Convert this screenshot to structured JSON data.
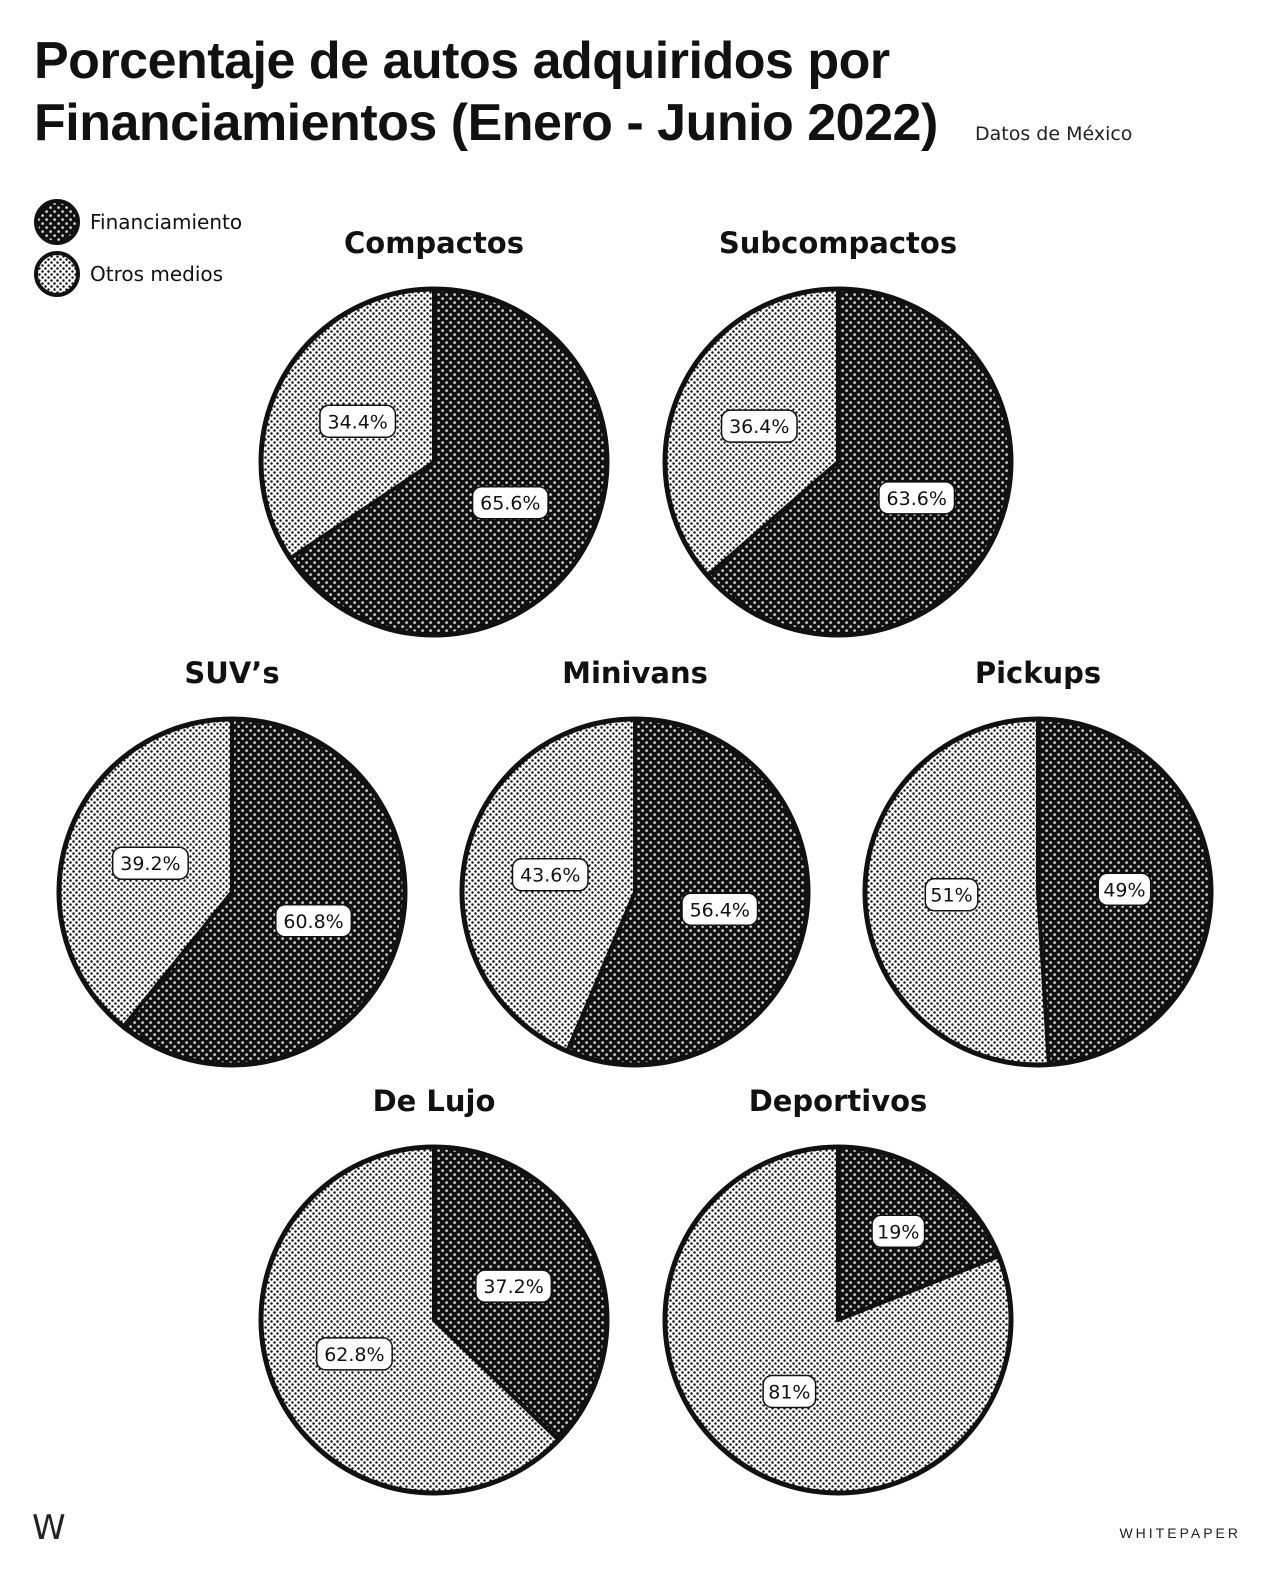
{
  "header": {
    "title_line1": "Porcentaje de autos adquiridos por",
    "title_line2": "Financiamientos (Enero - Junio 2022)",
    "subtitle": "Datos de México"
  },
  "legend": {
    "items": [
      {
        "label": "Financiamiento",
        "pattern": "dark"
      },
      {
        "label": "Otros medios",
        "pattern": "light"
      }
    ]
  },
  "colors": {
    "ink": "#111111",
    "paper": "#ffffff",
    "dark_pattern": "crosshatch-dark",
    "light_pattern": "dots-light"
  },
  "chart_data": {
    "type": "pie",
    "series_names": [
      "Financiamiento",
      "Otros medios"
    ],
    "charts": [
      {
        "title": "Compactos",
        "values": [
          65.6,
          34.4
        ],
        "labels": [
          "65.6%",
          "34.4%"
        ]
      },
      {
        "title": "Subcompactos",
        "values": [
          63.6,
          36.4
        ],
        "labels": [
          "63.6%",
          "36.4%"
        ]
      },
      {
        "title": "SUV’s",
        "values": [
          60.8,
          39.2
        ],
        "labels": [
          "60.8%",
          "39.2%"
        ]
      },
      {
        "title": "Minivans",
        "values": [
          56.4,
          43.6
        ],
        "labels": [
          "56.4%",
          "43.6%"
        ]
      },
      {
        "title": "Pickups",
        "values": [
          49,
          51
        ],
        "labels": [
          "49%",
          "51%"
        ]
      },
      {
        "title": "De Lujo",
        "values": [
          37.2,
          62.8
        ],
        "labels": [
          "37.2%",
          "62.8%"
        ]
      },
      {
        "title": "Deportivos",
        "values": [
          19,
          81
        ],
        "labels": [
          "19%",
          "81%"
        ]
      }
    ]
  },
  "footer": {
    "mark": "W",
    "brand": "WHITEPAPER"
  }
}
